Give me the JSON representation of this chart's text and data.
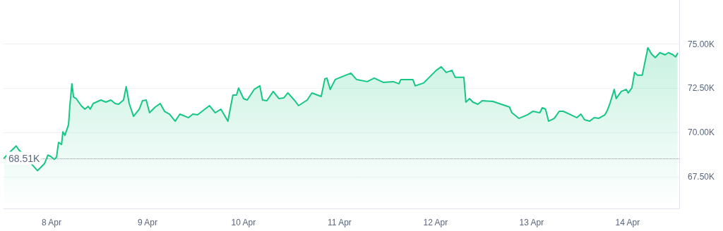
{
  "chart_data": {
    "type": "area",
    "x": [
      "--04-07T12:10",
      "--04-07T14:15",
      "--04-07T15:10",
      "--04-07T15:45",
      "--04-07T20:30",
      "--04-07T22:15",
      "--04-07T23:05",
      "--04-07T23:50",
      "--04-08T00:40",
      "--04-08T01:15",
      "--04-08T01:45",
      "--04-08T02:30",
      "--04-08T02:50",
      "--04-08T03:20",
      "--04-08T04:15",
      "--04-08T04:35",
      "--04-08T05:05",
      "--04-08T05:30",
      "--04-08T06:10",
      "--04-08T07:25",
      "--04-08T08:20",
      "--04-08T09:10",
      "--04-08T09:40",
      "--04-08T10:25",
      "--04-08T12:20",
      "--04-08T13:35",
      "--04-08T14:50",
      "--04-08T15:55",
      "--04-08T16:45",
      "--04-08T18:00",
      "--04-08T18:40",
      "--04-08T19:25",
      "--04-08T20:30",
      "--04-08T21:55",
      "--04-08T22:45",
      "--04-08T23:40",
      "--04-09T00:30",
      "--04-09T01:55",
      "--04-09T03:10",
      "--04-09T04:15",
      "--04-09T05:30",
      "--04-09T06:55",
      "--04-09T08:05",
      "--04-09T10:15",
      "--04-09T11:20",
      "--04-09T12:30",
      "--04-09T14:20",
      "--04-09T15:30",
      "--04-09T16:55",
      "--04-09T18:20",
      "--04-09T20:05",
      "--04-09T21:20",
      "--04-09T22:15",
      "--04-09T22:45",
      "--04-10T00:00",
      "--04-10T00:55",
      "--04-10T02:40",
      "--04-10T04:05",
      "--04-10T04:45",
      "--04-10T05:50",
      "--04-10T07:25",
      "--04-10T08:50",
      "--04-10T10:05",
      "--04-10T11:05",
      "--04-10T12:40",
      "--04-10T13:45",
      "--04-10T15:55",
      "--04-10T17:05",
      "--04-10T19:25",
      "--04-10T20:20",
      "--04-10T20:50",
      "--04-10T21:40",
      "--04-10T22:55",
      "--04-11T01:05",
      "--04-11T02:50",
      "--04-11T04:15",
      "--04-11T06:55",
      "--04-11T08:40",
      "--04-11T10:55",
      "--04-11T13:25",
      "--04-11T14:50",
      "--04-11T15:20",
      "--04-11T18:20",
      "--04-11T18:55",
      "--04-11T21:00",
      "--04-11T22:25",
      "--04-12T00:10",
      "--04-12T01:25",
      "--04-12T02:40",
      "--04-12T04:05",
      "--04-12T04:55",
      "--04-12T07:05",
      "--04-12T07:35",
      "--04-12T08:30",
      "--04-12T09:20",
      "--04-12T10:35",
      "--04-12T11:40",
      "--04-12T14:20",
      "--04-12T16:25",
      "--04-12T18:30",
      "--04-12T19:05",
      "--04-12T20:50",
      "--04-12T22:55",
      "--04-13T00:20",
      "--04-13T02:05",
      "--04-13T02:40",
      "--04-13T03:30",
      "--04-13T04:15",
      "--04-13T05:40",
      "--04-13T06:55",
      "--04-13T07:55",
      "--04-13T09:30",
      "--04-13T11:20",
      "--04-13T12:20",
      "--04-13T13:15",
      "--04-13T14:30",
      "--04-13T15:40",
      "--04-13T16:45",
      "--04-13T18:20",
      "--04-13T18:55",
      "--04-13T19:35",
      "--04-13T20:40",
      "--04-13T21:10",
      "--04-13T22:25",
      "--04-13T23:40",
      "--04-14T00:10",
      "--04-14T01:05",
      "--04-14T01:45",
      "--04-14T02:30",
      "--04-14T03:40",
      "--04-14T04:35",
      "--04-14T05:05",
      "--04-14T06:00",
      "--04-14T06:55",
      "--04-14T08:05",
      "--04-14T09:20",
      "--04-14T10:15",
      "--04-14T11:20",
      "--04-14T12:00",
      "--04-14T12:30"
    ],
    "values": [
      68.56,
      69.04,
      69.24,
      69.04,
      67.84,
      68.24,
      68.72,
      68.64,
      68.48,
      68.6,
      69.44,
      69.32,
      70.04,
      69.84,
      70.44,
      71.52,
      72.76,
      72.0,
      71.92,
      71.52,
      71.32,
      71.48,
      71.32,
      71.64,
      71.84,
      71.72,
      71.84,
      71.64,
      71.6,
      71.84,
      72.6,
      71.64,
      70.92,
      71.32,
      71.8,
      71.84,
      71.12,
      71.44,
      71.64,
      71.2,
      71.04,
      70.64,
      71.04,
      70.84,
      71.04,
      71.0,
      71.32,
      71.52,
      71.12,
      71.32,
      70.64,
      72.12,
      72.12,
      72.52,
      71.92,
      71.84,
      72.44,
      72.64,
      71.84,
      71.8,
      72.32,
      71.92,
      71.96,
      72.24,
      71.84,
      71.52,
      71.84,
      72.24,
      72.04,
      73.04,
      73.08,
      72.44,
      73.0,
      73.2,
      73.36,
      73.0,
      72.88,
      73.08,
      72.84,
      72.88,
      72.76,
      73.0,
      73.0,
      72.64,
      72.8,
      73.12,
      73.52,
      73.72,
      73.4,
      73.52,
      73.12,
      73.12,
      71.72,
      71.92,
      71.72,
      71.6,
      71.8,
      71.76,
      71.6,
      71.44,
      71.12,
      70.8,
      71.0,
      71.2,
      71.12,
      71.4,
      71.32,
      70.64,
      70.8,
      71.2,
      71.2,
      71.04,
      70.84,
      71.04,
      70.72,
      70.64,
      70.84,
      70.8,
      71.0,
      71.24,
      71.64,
      72.44,
      71.92,
      72.32,
      72.44,
      72.24,
      72.52,
      73.4,
      73.24,
      73.24,
      74.24,
      74.8,
      74.44,
      74.24,
      74.52,
      74.4,
      74.52,
      74.4,
      74.28,
      74.48
    ],
    "color": "#16c784",
    "xlim": [
      "--04-07T12:00",
      "--04-14T12:55"
    ],
    "xticks": [
      {
        "value": "--04-08",
        "label": "8 Apr"
      },
      {
        "value": "--04-09",
        "label": "9 Apr"
      },
      {
        "value": "--04-10",
        "label": "10 Apr"
      },
      {
        "value": "--04-11",
        "label": "11 Apr"
      },
      {
        "value": "--04-12",
        "label": "12 Apr"
      },
      {
        "value": "--04-13",
        "label": "13 Apr"
      },
      {
        "value": "--04-14",
        "label": "14 Apr"
      }
    ],
    "ylim": [
      65.7,
      77.5
    ],
    "yticks": [
      {
        "value": 67.5,
        "label": "67.50K"
      },
      {
        "value": 70,
        "label": "70.00K"
      },
      {
        "value": 72.5,
        "label": "72.50K"
      },
      {
        "value": 75,
        "label": "75.00K"
      }
    ],
    "ref_lines": [
      {
        "axis": "y",
        "value": 68.51,
        "label": "68.51K",
        "color": "#8c8fa3",
        "line_style": "dotted"
      }
    ],
    "grid": "y",
    "marker": "none",
    "line_style": "solid"
  }
}
